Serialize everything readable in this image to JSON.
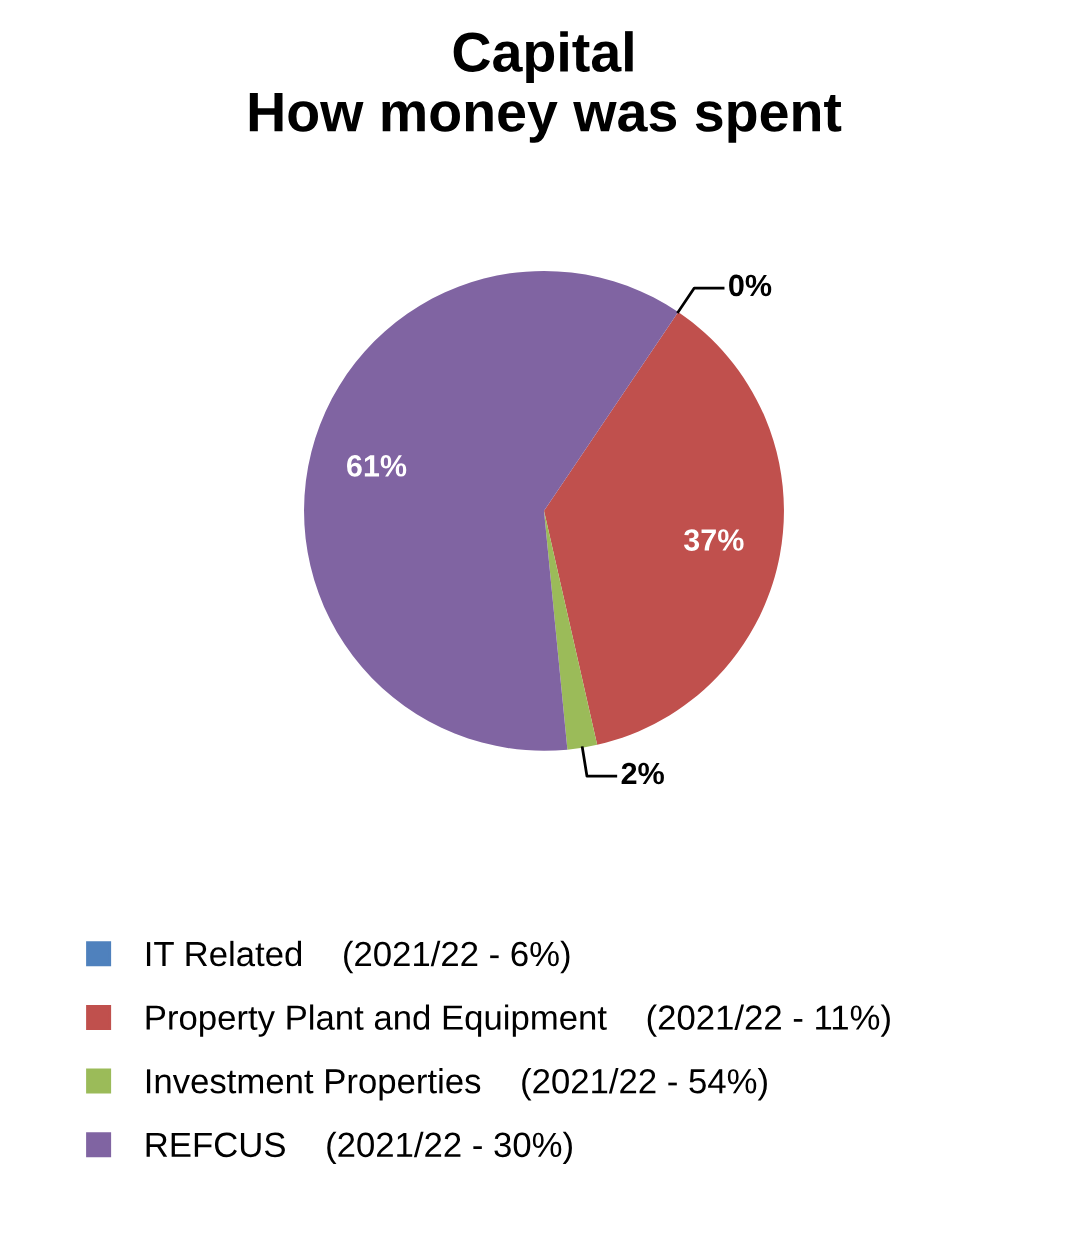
{
  "chart_data": {
    "type": "pie",
    "title": "Capital\nHow money was spent",
    "categories": [
      "IT Related    (2021/22 - 6%)",
      "Property Plant and Equipment    (2021/22 - 11%)",
      "Investment Properties    (2021/22 - 54%)",
      "REFCUS    (2021/22 - 30%)"
    ],
    "values": [
      0,
      37,
      2,
      61
    ],
    "colors": [
      "#4f81bd",
      "#c0504d",
      "#9bbb59",
      "#8064a2"
    ],
    "value_labels": [
      "0%",
      "37%",
      "2%",
      "61%"
    ],
    "legend": "bottom"
  }
}
